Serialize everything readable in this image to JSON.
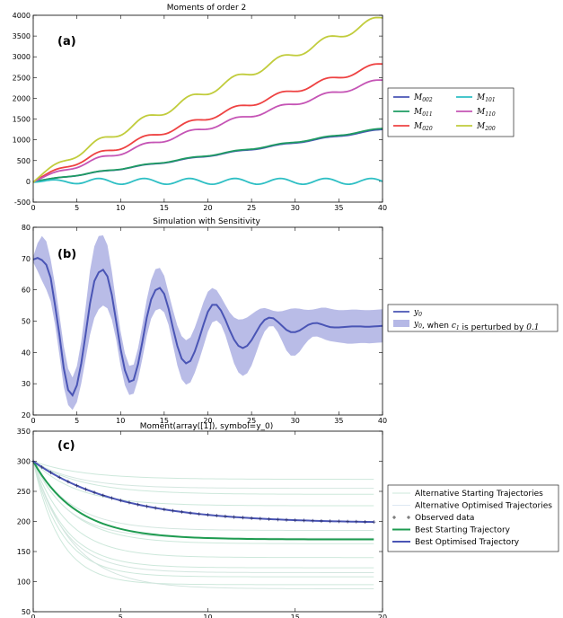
{
  "chart_data": [
    {
      "type": "line",
      "panel_label": "(a)",
      "title": "Moments of order 2",
      "xlim": [
        0,
        40
      ],
      "ylim": [
        -500,
        4000
      ],
      "xticks": [
        0,
        5,
        10,
        15,
        20,
        25,
        30,
        35,
        40
      ],
      "yticks": [
        -500,
        0,
        500,
        1000,
        1500,
        2000,
        2500,
        3000,
        3500,
        4000
      ],
      "grid": false,
      "legend": "right",
      "series": [
        {
          "name": "M002",
          "sub": "002",
          "color": "#4a55b5",
          "trend": {
            "a": 28,
            "p": 1.0,
            "amp": 15
          }
        },
        {
          "name": "M011",
          "sub": "011",
          "color": "#1e9b62",
          "trend": {
            "a": 28.5,
            "p": 1.0,
            "amp": 15
          }
        },
        {
          "name": "M020",
          "sub": "020",
          "color": "#ee4242",
          "trend": {
            "a": 110,
            "p": 0.85,
            "amp": 60
          }
        },
        {
          "name": "M101",
          "sub": "101",
          "color": "#2ebfc4",
          "trend": {
            "a": 0,
            "p": 1.0,
            "amp": 70
          }
        },
        {
          "name": "M110",
          "sub": "110",
          "color": "#c554b5",
          "trend": {
            "a": 85,
            "p": 0.88,
            "amp": 50
          }
        },
        {
          "name": "M200",
          "sub": "200",
          "color": "#c1cc3c",
          "trend": {
            "a": 165,
            "p": 0.83,
            "amp": 90
          }
        }
      ],
      "period": 5.2
    },
    {
      "type": "line",
      "panel_label": "(b)",
      "title": "Simulation with Sensitivity",
      "xlim": [
        0,
        40
      ],
      "ylim": [
        20,
        80
      ],
      "xticks": [
        0,
        5,
        10,
        15,
        20,
        25,
        30,
        35,
        40
      ],
      "yticks": [
        20,
        30,
        40,
        50,
        60,
        70,
        80
      ],
      "grid": false,
      "legend": "right",
      "x": [
        0,
        0.5,
        1,
        1.5,
        2,
        2.5,
        3,
        3.5,
        4,
        4.5,
        5,
        5.5,
        6,
        6.5,
        7,
        7.5,
        8,
        8.5,
        9,
        9.5,
        10,
        10.5,
        11,
        11.5,
        12,
        12.5,
        13,
        13.5,
        14,
        14.5,
        15,
        15.5,
        16,
        16.5,
        17,
        17.5,
        18,
        18.5,
        19,
        19.5,
        20,
        20.5,
        21,
        21.5,
        22,
        22.5,
        23,
        23.5,
        24,
        24.5,
        25,
        25.5,
        26,
        26.5,
        27,
        27.5,
        28,
        28.5,
        29,
        29.5,
        30,
        30.5,
        31,
        31.5,
        32,
        32.5,
        33,
        33.5,
        34,
        34.5,
        35,
        35.5,
        36,
        36.5,
        37,
        37.5,
        38,
        38.5,
        39,
        39.5,
        40
      ],
      "y0": [
        69.7,
        70.2,
        69.5,
        68.0,
        63.8,
        55.0,
        45.6,
        34.9,
        28.0,
        26.3,
        29.5,
        36.5,
        45.8,
        55.6,
        62.8,
        65.6,
        66.4,
        64.3,
        58.4,
        49.9,
        41.2,
        34.3,
        30.6,
        31.2,
        36.2,
        43.4,
        51.1,
        56.9,
        59.9,
        60.6,
        58.7,
        54.0,
        47.8,
        42.1,
        38.0,
        36.5,
        37.3,
        40.3,
        44.4,
        48.9,
        53.0,
        55.2,
        55.2,
        53.4,
        50.5,
        47.1,
        44.1,
        42.1,
        41.4,
        42.1,
        43.9,
        46.3,
        48.7,
        50.4,
        51.1,
        50.9,
        49.8,
        48.5,
        47.2,
        46.5,
        46.5,
        47.0,
        47.9,
        48.8,
        49.3,
        49.4,
        49.0,
        48.5,
        48.1,
        48.0,
        48.0,
        48.1,
        48.2,
        48.3,
        48.3,
        48.3,
        48.2,
        48.2,
        48.3,
        48.4,
        48.5
      ],
      "upper": [
        70.6,
        74.9,
        77.2,
        75.5,
        69.7,
        61.6,
        52.0,
        42.0,
        34.8,
        32.0,
        35.6,
        43.5,
        54.4,
        66.1,
        73.9,
        77.2,
        77.4,
        74.3,
        66.0,
        55.8,
        46.8,
        39.7,
        35.7,
        36.1,
        41.3,
        48.8,
        56.9,
        63.1,
        66.6,
        67.0,
        64.5,
        59.0,
        53.6,
        48.6,
        45.2,
        43.9,
        44.8,
        47.9,
        51.9,
        56.1,
        59.4,
        60.6,
        59.9,
        57.7,
        55.2,
        52.8,
        51.2,
        50.5,
        50.6,
        51.2,
        52.2,
        53.2,
        54.0,
        54.2,
        53.8,
        53.3,
        53.1,
        53.2,
        53.6,
        54.0,
        54.1,
        54.0,
        53.7,
        53.6,
        53.7,
        54.0,
        54.3,
        54.3,
        54.0,
        53.7,
        53.5,
        53.5,
        53.6,
        53.7,
        53.7,
        53.6,
        53.5,
        53.5,
        53.6,
        53.7,
        53.8
      ],
      "lower": [
        68.8,
        66.0,
        62.9,
        60.1,
        56.4,
        48.9,
        39.2,
        28.9,
        23.2,
        21.6,
        24.1,
        30.1,
        37.9,
        45.6,
        51.0,
        53.8,
        55.0,
        54.1,
        50.5,
        44.1,
        35.8,
        29.5,
        26.4,
        26.8,
        31.3,
        38.0,
        45.3,
        50.8,
        53.4,
        54.0,
        52.8,
        48.8,
        42.4,
        35.9,
        31.4,
        29.7,
        30.4,
        33.5,
        37.5,
        42.0,
        46.6,
        49.6,
        50.2,
        48.9,
        45.5,
        41.0,
        36.5,
        33.6,
        32.5,
        33.3,
        35.8,
        39.6,
        43.6,
        46.7,
        48.3,
        48.4,
        46.5,
        43.6,
        40.6,
        39.0,
        39.0,
        40.2,
        42.2,
        43.9,
        45.0,
        45.1,
        44.6,
        44.0,
        43.6,
        43.4,
        43.2,
        43.0,
        42.8,
        42.8,
        42.9,
        43.0,
        43.0,
        42.9,
        43.0,
        43.1,
        43.2
      ],
      "series": [
        {
          "name": "y0",
          "label": "y",
          "sub": "0",
          "color": "#4a55b5"
        },
        {
          "name": "y0, when c1 is perturbed by 0.1",
          "label": "y",
          "sub": "0",
          "text1": ", when ",
          "var": "c",
          "varsub": "1",
          "text2": " is perturbed by ",
          "num": "0.1",
          "color": "#b5b8e6"
        }
      ]
    },
    {
      "type": "line",
      "panel_label": "(c)",
      "title": "Moment(array([1]), symbol=y_0)",
      "xlim": [
        0,
        20
      ],
      "ylim": [
        50,
        350
      ],
      "xticks": [
        0,
        5,
        10,
        15,
        20
      ],
      "yticks": [
        50,
        100,
        150,
        200,
        250,
        300,
        350
      ],
      "grid": false,
      "legend": "right",
      "start": 300,
      "light_starting": [
        {
          "end": 270,
          "rate": 0.35
        },
        {
          "end": 245,
          "rate": 0.35
        },
        {
          "end": 226,
          "rate": 0.4
        },
        {
          "end": 163,
          "rate": 0.45
        },
        {
          "end": 140,
          "rate": 0.5
        },
        {
          "end": 123,
          "rate": 0.55
        },
        {
          "end": 108,
          "rate": 0.6
        },
        {
          "end": 95,
          "rate": 0.65
        }
      ],
      "light_optimised": [
        {
          "end": 255,
          "rate": 0.4
        },
        {
          "end": 185,
          "rate": 0.45
        },
        {
          "end": 172,
          "rate": 0.5
        },
        {
          "end": 115,
          "rate": 0.55
        },
        {
          "end": 88,
          "rate": 0.45
        }
      ],
      "best_starting": {
        "end": 170,
        "rate": 0.4
      },
      "best_optimised": {
        "end": 197,
        "rate": 0.2
      },
      "observed_x": [
        0,
        0.5,
        1,
        1.5,
        2,
        2.5,
        3,
        3.5,
        4,
        4.5,
        5,
        5.5,
        6,
        6.5,
        7,
        7.5,
        8,
        8.5,
        9,
        9.5,
        10,
        10.5,
        11,
        11.5,
        12,
        12.5,
        13,
        13.5,
        14,
        14.5,
        15,
        15.5,
        16,
        16.5,
        17,
        17.5,
        18,
        18.5,
        19,
        19.5
      ],
      "series": [
        {
          "name": "Alternative Starting Trajectories",
          "color": "#cde8db"
        },
        {
          "name": "Alternative Optimised Trajectories",
          "color": "#dde8f2"
        },
        {
          "name": "Observed data",
          "color": "#333333"
        },
        {
          "name": "Best Starting Trajectory",
          "color": "#1e9b50"
        },
        {
          "name": "Best Optimised Trajectory",
          "color": "#4a55b5"
        }
      ]
    }
  ]
}
